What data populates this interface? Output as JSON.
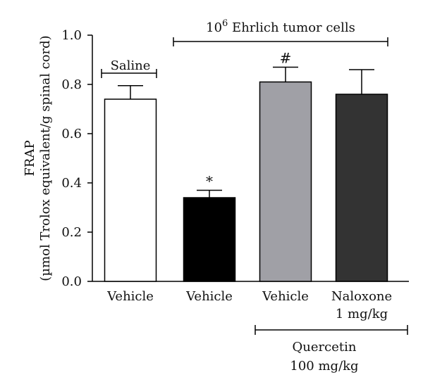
{
  "chart_data": {
    "type": "bar",
    "ylabel_line1": "FRAP",
    "ylabel_line2": "(µmol Trolox equivalent/g spinal cord)",
    "ylim": [
      0,
      1.0
    ],
    "yticks": [
      "0.0",
      "0.2",
      "0.4",
      "0.6",
      "0.8",
      "1.0"
    ],
    "ytick_values": [
      0,
      0.2,
      0.4,
      0.6,
      0.8,
      1.0
    ],
    "categories": [
      {
        "line1": "Vehicle",
        "line2": ""
      },
      {
        "line1": "Vehicle",
        "line2": ""
      },
      {
        "line1": "Vehicle",
        "line2": ""
      },
      {
        "line1": "Naloxone",
        "line2": "1 mg/kg"
      }
    ],
    "values": [
      0.74,
      0.34,
      0.81,
      0.76
    ],
    "errors": [
      0.055,
      0.03,
      0.06,
      0.1
    ],
    "bar_colors": [
      "#ffffff",
      "#000000",
      "#a0a0a6",
      "#333333"
    ],
    "significance": [
      "",
      "*",
      "#",
      ""
    ],
    "annotations": {
      "saline": "Saline",
      "tumor_sup": "6",
      "tumor_pre": "10",
      "tumor_post": " Ehrlich tumor cells",
      "quercetin_line1": "Quercetin",
      "quercetin_line2": "100 mg/kg"
    }
  }
}
